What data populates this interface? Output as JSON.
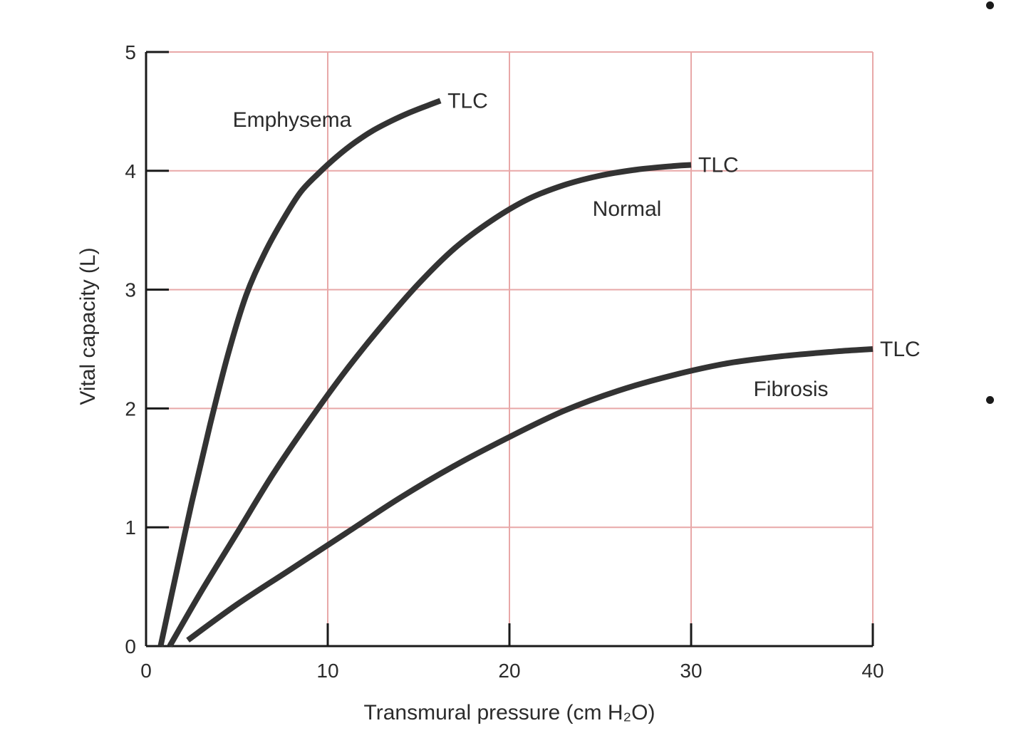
{
  "chart_data": {
    "type": "line",
    "xlabel": "Transmural pressure (cm H₂O)",
    "ylabel": "Vital capacity (L)",
    "xlim": [
      0,
      40
    ],
    "ylim": [
      0,
      5
    ],
    "xticks": [
      0,
      10,
      20,
      30,
      40
    ],
    "yticks": [
      0,
      1,
      2,
      3,
      4,
      5
    ],
    "grid": true,
    "colors": {
      "grid": "#e8a8a8",
      "curve": "#333333",
      "axis": "#1a1a1a"
    },
    "series": [
      {
        "name": "Emphysema",
        "end_label": "TLC",
        "x": [
          0.8,
          1.5,
          2.5,
          3.5,
          4.5,
          5.5,
          6.5,
          7.5,
          8.5,
          9.5,
          10.5,
          11.5,
          12.5,
          13.5,
          14.5,
          15.5,
          16.2
        ],
        "y": [
          0,
          0.5,
          1.2,
          1.85,
          2.45,
          2.95,
          3.3,
          3.58,
          3.82,
          3.98,
          4.12,
          4.24,
          4.34,
          4.42,
          4.49,
          4.55,
          4.59
        ]
      },
      {
        "name": "Normal",
        "end_label": "TLC",
        "x": [
          1.3,
          3,
          5,
          7,
          9,
          11,
          13,
          15,
          17,
          19,
          21,
          23,
          25,
          27,
          29,
          30
        ],
        "y": [
          0,
          0.45,
          0.95,
          1.45,
          1.9,
          2.32,
          2.7,
          3.05,
          3.35,
          3.58,
          3.76,
          3.88,
          3.96,
          4.01,
          4.04,
          4.05
        ]
      },
      {
        "name": "Fibrosis",
        "end_label": "TLC",
        "x": [
          2.3,
          5,
          8,
          11,
          14,
          17,
          20,
          23,
          26,
          29,
          32,
          35,
          38,
          40
        ],
        "y": [
          0.05,
          0.35,
          0.65,
          0.95,
          1.25,
          1.52,
          1.76,
          1.98,
          2.15,
          2.28,
          2.38,
          2.44,
          2.48,
          2.5
        ]
      }
    ]
  }
}
